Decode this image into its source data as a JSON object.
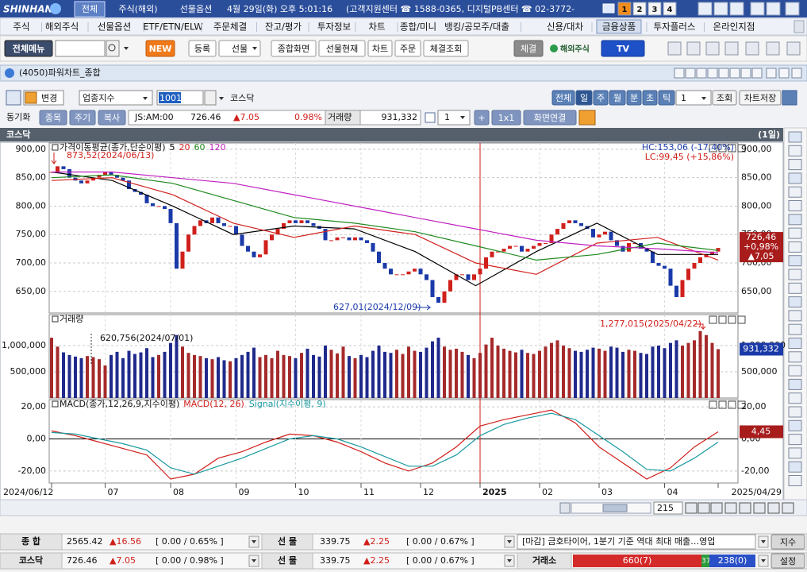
{
  "titlebar": {
    "brand": "SHINHAN",
    "tabs": [
      "전체",
      "주식(해외)",
      "선물옵션"
    ],
    "clock": "4월 29일(화) 오후 5:01:16",
    "contact": "(고객지원센터 ☎ 1588-0365, 디지털PB센터 ☎ 02-3772-",
    "screens": [
      "1",
      "2",
      "3",
      "4"
    ]
  },
  "menu": [
    "주식",
    "해외주식",
    "선물옵션",
    "ETF/ETN/ELW",
    "주문체결",
    "잔고/평가",
    "투자정보",
    "차트",
    "종합/미니",
    "뱅킹/공모주/대출",
    "신용/대차",
    "금융상품",
    "투자플러스",
    "온라인지점"
  ],
  "toolbar": {
    "all_menu": "전체메뉴",
    "new": "NEW",
    "buttons": [
      "등록",
      "선물",
      "종합화면",
      "선물현재",
      "차트",
      "주문",
      "체결조회"
    ],
    "fill": "체결",
    "overseas": "해외주식",
    "tv": "TV"
  },
  "window": {
    "title": "(4050)파워차트_종합"
  },
  "controls": {
    "change": "변경",
    "market": "업종지수",
    "code": "1001",
    "name": "코스닥",
    "periods": [
      "전체",
      "일",
      "주",
      "월",
      "분",
      "초",
      "틱"
    ],
    "count": "1",
    "query": "조회",
    "save": "차트저장"
  },
  "quote": {
    "sync": "동기화",
    "buttons": [
      "종목",
      "주기",
      "복사"
    ],
    "time": "JS:AM:00",
    "price": "726.46",
    "change": "▲7.05",
    "rate": "0.98%",
    "volume_label": "거래량",
    "volume": "931,332",
    "layout_count": "1",
    "plus": "+",
    "grid": "1x1",
    "link": "화면연결"
  },
  "chart_header": {
    "name": "코스닥",
    "period": "(1일)"
  },
  "chart_data": [
    {
      "type": "candlestick",
      "title": "가격이동평균(종가,단순이평)",
      "up_color": "#d0201c",
      "down_color": "#1a3aa8",
      "close": [
        860,
        870,
        865,
        850,
        845,
        840,
        845,
        850,
        855,
        860,
        855,
        850,
        845,
        830,
        825,
        820,
        805,
        800,
        800,
        795,
        770,
        690,
        720,
        750,
        765,
        775,
        770,
        780,
        770,
        765,
        765,
        750,
        730,
        720,
        710,
        715,
        740,
        750,
        760,
        770,
        775,
        770,
        775,
        770,
        765,
        760,
        740,
        740,
        745,
        745,
        740,
        745,
        740,
        735,
        720,
        700,
        690,
        680,
        680,
        680,
        685,
        690,
        680,
        670,
        640,
        630,
        650,
        670,
        680,
        680,
        670,
        680,
        690,
        710,
        720,
        720,
        725,
        730,
        730,
        720,
        725,
        730,
        735,
        735,
        750,
        760,
        770,
        775,
        770,
        765,
        760,
        745,
        750,
        755,
        740,
        730,
        720,
        735,
        735,
        725,
        720,
        700,
        695,
        690,
        660,
        640,
        670,
        690,
        700,
        710,
        715,
        720,
        726.46
      ],
      "series": [
        {
          "name": "5",
          "color": "#000000",
          "values": [
            860,
            845,
            800,
            750,
            765,
            760,
            720,
            660,
            720,
            770,
            715,
            715
          ]
        },
        {
          "name": "20",
          "color": "#d0201c",
          "values": [
            845,
            850,
            820,
            770,
            745,
            765,
            750,
            700,
            680,
            735,
            745,
            705
          ]
        },
        {
          "name": "60",
          "color": "#1f8a1f",
          "values": [
            850,
            855,
            840,
            810,
            780,
            770,
            755,
            730,
            705,
            715,
            735,
            722
          ]
        },
        {
          "name": "120",
          "color": "#c020c0",
          "values": [
            860,
            860,
            850,
            840,
            820,
            800,
            780,
            760,
            740,
            730,
            725,
            718
          ]
        }
      ],
      "xlim": [
        0,
        112
      ],
      "xticks": [
        {
          "value": 0,
          "label": "2024/06/12"
        },
        {
          "value": 9,
          "label": "07"
        },
        {
          "value": 20,
          "label": "08"
        },
        {
          "value": 31,
          "label": "09"
        },
        {
          "value": 41,
          "label": "10"
        },
        {
          "value": 52,
          "label": "11"
        },
        {
          "value": 62,
          "label": "12"
        },
        {
          "value": 72,
          "label": "2025"
        },
        {
          "value": 82,
          "label": "02"
        },
        {
          "value": 92,
          "label": "03"
        },
        {
          "value": 103,
          "label": "04"
        },
        {
          "value": 112,
          "label": "2025/04/29"
        }
      ],
      "ylim": [
        612,
        911
      ],
      "yticks": [
        {
          "value": 900,
          "label": "900,00"
        },
        {
          "value": 850,
          "label": "850,00"
        },
        {
          "value": 800,
          "label": "800,00"
        },
        {
          "value": 750,
          "label": "750,00"
        },
        {
          "value": 700,
          "label": "700,00"
        },
        {
          "value": 650,
          "label": "650,00"
        }
      ],
      "grid": true,
      "hc_label": "HC:153,06 (-17,40%)",
      "lc_label": "LC:99,45 (+15,86%)",
      "high_label": "873,52(2024/06/13)",
      "low_label": "627,01(2024/12/09)",
      "last_labels": [
        "726,46",
        "+0,98%",
        "▲7,05"
      ]
    },
    {
      "type": "bar",
      "title": "거래량",
      "values": [
        1150000,
        980000,
        870000,
        820000,
        790000,
        760000,
        800000,
        780000,
        740000,
        620756,
        820000,
        880000,
        760000,
        900000,
        840000,
        870000,
        950000,
        780000,
        820000,
        880000,
        1050000,
        1200000,
        980000,
        860000,
        820000,
        800000,
        760000,
        740000,
        780000,
        720000,
        700000,
        760000,
        820000,
        880000,
        960000,
        780000,
        820000,
        760000,
        900000,
        820000,
        800000,
        760000,
        860000,
        940000,
        820000,
        790000,
        1000000,
        920000,
        850000,
        980000,
        800000,
        760000,
        820000,
        780000,
        900000,
        1000000,
        880000,
        860000,
        920000,
        840000,
        980000,
        900000,
        880000,
        960000,
        1080000,
        1150000,
        980000,
        920000,
        940000,
        880000,
        820000,
        760000,
        860000,
        1020000,
        1150000,
        1000000,
        940000,
        900000,
        870000,
        920000,
        860000,
        840000,
        900000,
        980000,
        1050000,
        1100000,
        1000000,
        950000,
        900000,
        880000,
        920000,
        960000,
        940000,
        900000,
        980000,
        960000,
        880000,
        920000,
        900000,
        860000,
        840000,
        980000,
        1000000,
        950000,
        1050000,
        1100000,
        1000000,
        1050000,
        1100000,
        1277015,
        1200000,
        1050000,
        931332
      ],
      "ylim": [
        0,
        1590000
      ],
      "yticks": [
        {
          "value": 1000000,
          "label": "1,000,000"
        },
        {
          "value": 500000,
          "label": "500,000"
        }
      ],
      "grid": true,
      "low_label": "620,756(2024/07/01)",
      "high_label": "1,277,015(2025/04/22)",
      "last_label": "931,332"
    },
    {
      "type": "line",
      "title": "MACD(종가,12,26,9,지수이평)",
      "series": [
        {
          "name": "MACD(12, 26)",
          "color": "#d0201c",
          "values": [
            5,
            2,
            -2,
            -6,
            -10,
            -25,
            -22,
            -12,
            -8,
            -2,
            3,
            2,
            -2,
            -8,
            -15,
            -20,
            -15,
            -5,
            8,
            12,
            15,
            18,
            10,
            -5,
            -15,
            -25,
            -18,
            -5,
            4.45
          ]
        },
        {
          "name": "Signal(지수이평, 9)",
          "color": "#1a9aa0",
          "values": [
            4,
            3,
            0,
            -3,
            -7,
            -18,
            -22,
            -17,
            -12,
            -6,
            0,
            2,
            0,
            -5,
            -11,
            -17,
            -17,
            -10,
            2,
            9,
            13,
            16,
            12,
            2,
            -8,
            -19,
            -20,
            -12,
            -2
          ]
        }
      ],
      "ylim": [
        -27.5,
        24.5
      ],
      "yticks": [
        {
          "value": 20,
          "label": "20,00"
        },
        {
          "value": 0,
          "label": "0,00"
        },
        {
          "value": -20,
          "label": "-20,00"
        }
      ],
      "grid": true,
      "last_label": "4,45"
    }
  ],
  "scroll": {
    "count": "215"
  },
  "status": [
    {
      "label": "종 합",
      "value": "2565.42",
      "change": "▲16.56",
      "range": "[ 0.00  / 0.65% ]",
      "fut_label": "선 물",
      "fut_value": "339.75",
      "fut_change": "▲2.25",
      "fut_range": "[ 0.00  / 0.67% ]",
      "news": "[마감] 금호타이어, 1분기 기준 역대 최대 매출…영업",
      "button": "지수"
    },
    {
      "label": "코스닥",
      "value": "726.46",
      "change": "▲7.05",
      "range": "[ 0.00  / 0.98% ]",
      "fut_label": "선 물",
      "fut_value": "339.75",
      "fut_change": "▲2.25",
      "fut_range": "[ 0.00  / 0.67% ]",
      "exchange": "거래소",
      "up": "660(7)",
      "flat": "37",
      "down": "238(0)",
      "button": "설정"
    }
  ]
}
